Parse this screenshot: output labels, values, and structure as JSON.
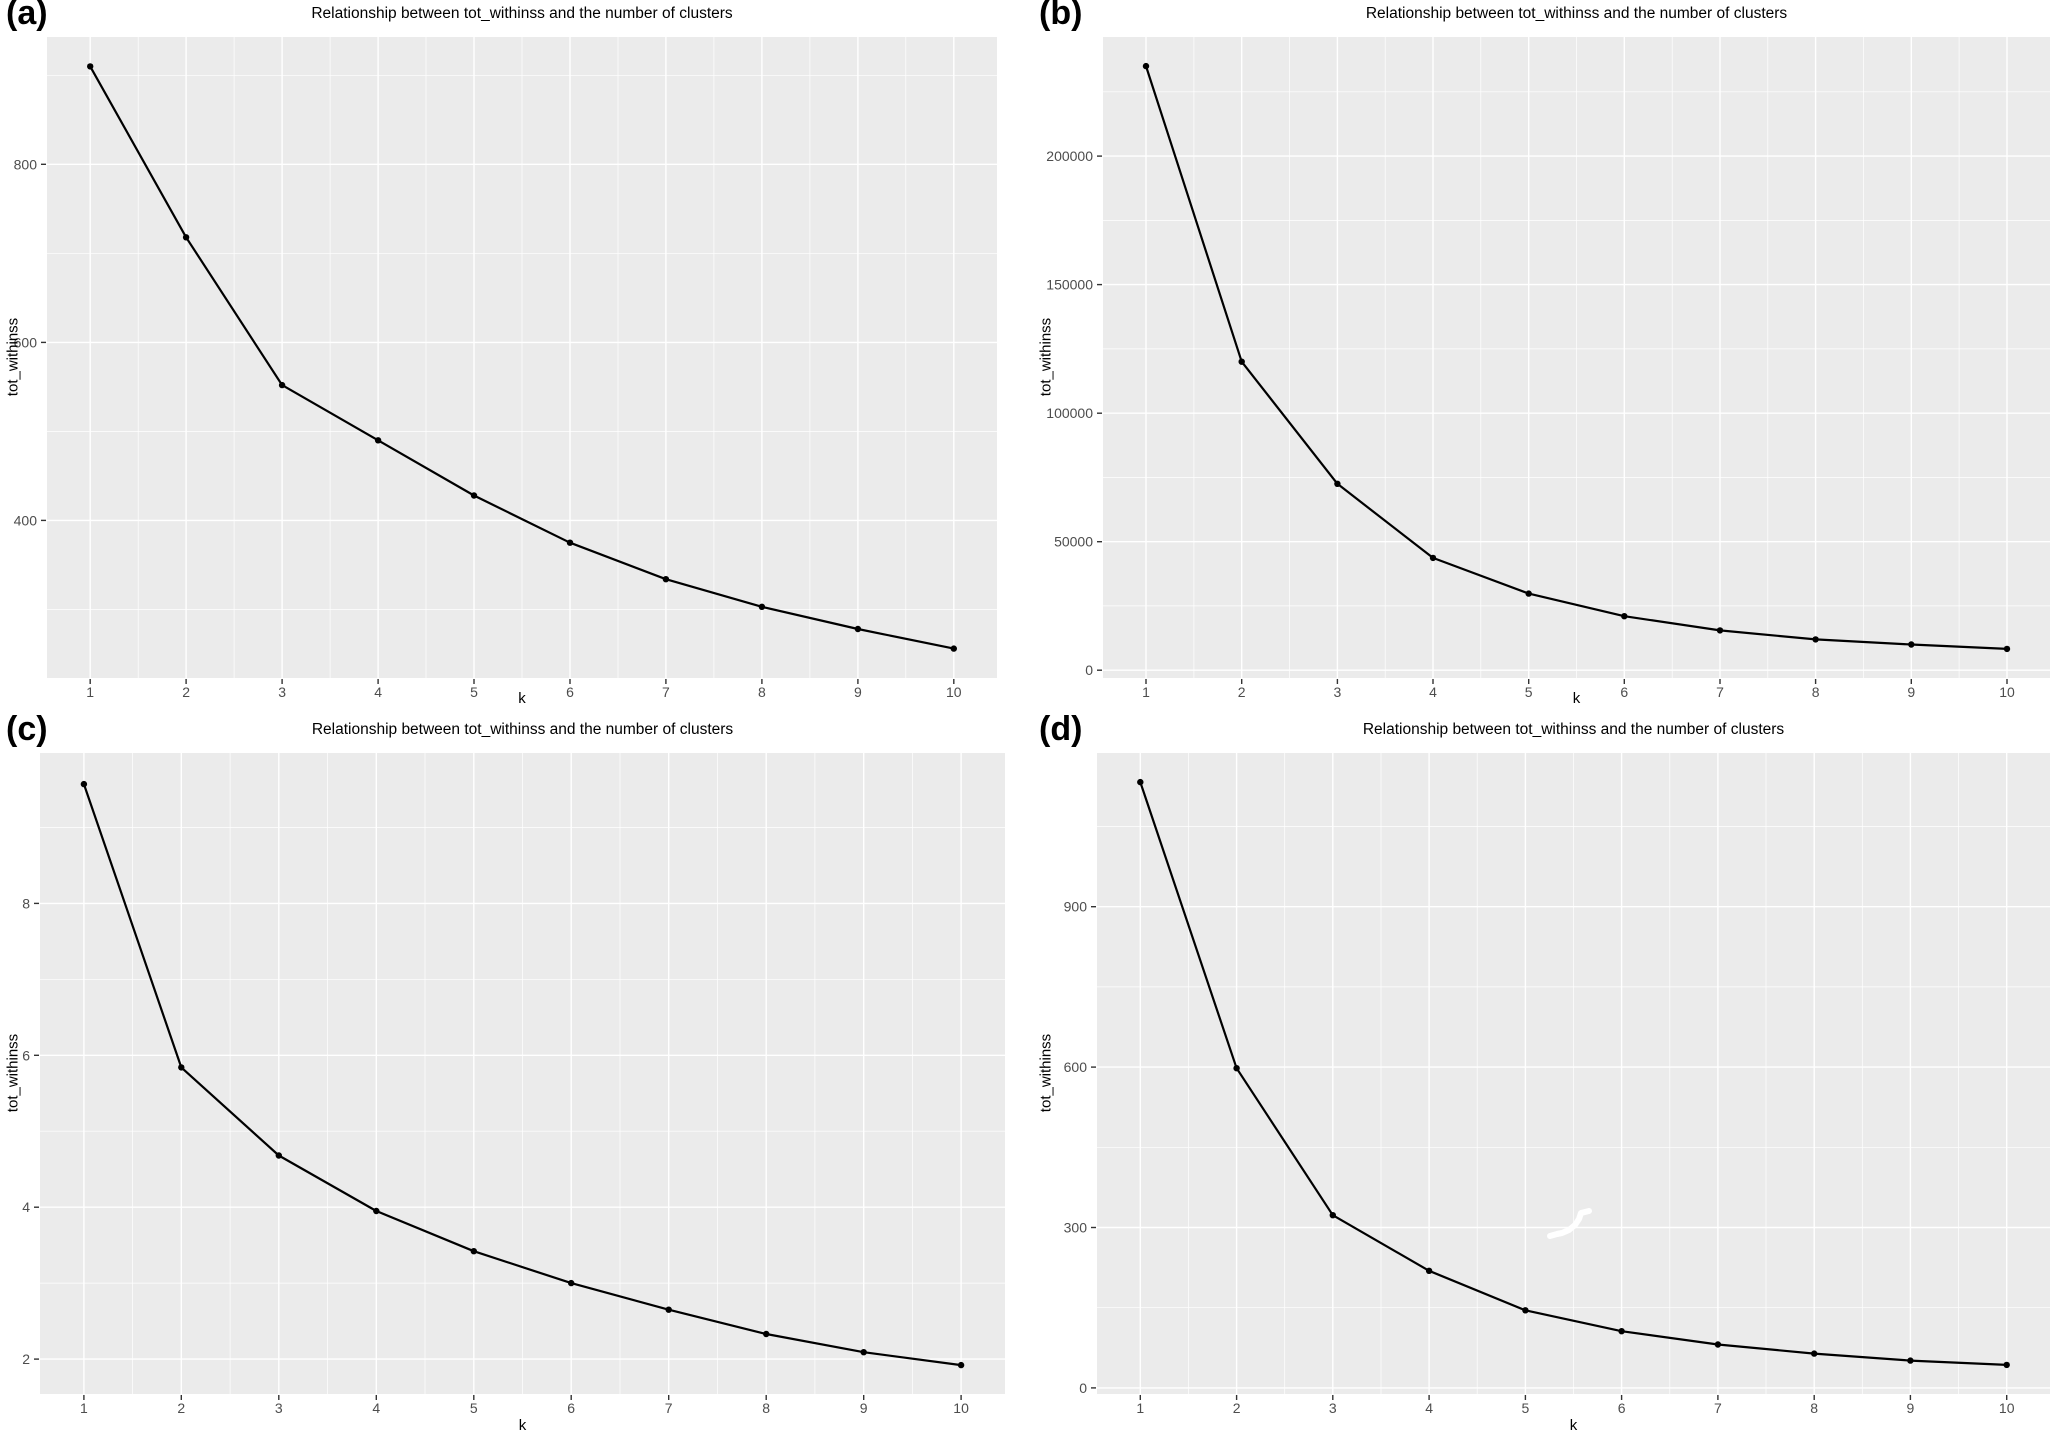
{
  "style": {
    "page_bg": "#ffffff",
    "panel_bg": "#ebebeb",
    "grid_color": "#ffffff",
    "line_color": "#000000",
    "tick_label_color": "#4d4d4d",
    "tick_mark_color": "#333333"
  },
  "chart_data": [
    {
      "panel_label": "(a)",
      "type": "line",
      "title": "Relationship between tot_withinss and the number of clusters",
      "xlabel": "k",
      "ylabel": "tot_withinss",
      "x": [
        1,
        2,
        3,
        4,
        5,
        6,
        7,
        8,
        9,
        10
      ],
      "values": [
        910,
        718,
        552,
        490,
        428,
        375,
        334,
        303,
        278,
        256
      ],
      "xlim": [
        0.55,
        10.45
      ],
      "ylim": [
        223,
        943
      ],
      "xticks": [
        1,
        2,
        3,
        4,
        5,
        6,
        7,
        8,
        9,
        10
      ],
      "xticks_minor": [
        1.5,
        2.5,
        3.5,
        4.5,
        5.5,
        6.5,
        7.5,
        8.5,
        9.5
      ],
      "yticks": [
        400,
        600,
        800
      ],
      "ytick_labels": [
        "400",
        "600",
        "800"
      ],
      "yticks_minor": [
        300,
        500,
        700,
        900
      ],
      "grid": true,
      "legend": "none"
    },
    {
      "panel_label": "(b)",
      "type": "line",
      "title": "Relationship between tot_withinss and the number of clusters",
      "xlabel": "k",
      "ylabel": "tot_withinss",
      "x": [
        1,
        2,
        3,
        4,
        5,
        6,
        7,
        8,
        9,
        10
      ],
      "values": [
        235000,
        120000,
        72500,
        43700,
        29800,
        21000,
        15500,
        12000,
        10000,
        8300
      ],
      "xlim": [
        0.55,
        10.45
      ],
      "ylim": [
        -3035,
        246335
      ],
      "xticks": [
        1,
        2,
        3,
        4,
        5,
        6,
        7,
        8,
        9,
        10
      ],
      "xticks_minor": [
        1.5,
        2.5,
        3.5,
        4.5,
        5.5,
        6.5,
        7.5,
        8.5,
        9.5
      ],
      "yticks": [
        0,
        50000,
        100000,
        150000,
        200000
      ],
      "ytick_labels": [
        "0",
        "50000",
        "100000",
        "150000",
        "200000"
      ],
      "yticks_minor": [
        25000,
        75000,
        125000,
        175000,
        225000
      ],
      "grid": true,
      "legend": "none"
    },
    {
      "panel_label": "(c)",
      "type": "line",
      "title": "Relationship between tot_withinss and the number of clusters",
      "xlabel": "k",
      "ylabel": "tot_withinss",
      "x": [
        1,
        2,
        3,
        4,
        5,
        6,
        7,
        8,
        9,
        10
      ],
      "values": [
        9.57,
        5.84,
        4.68,
        3.95,
        3.42,
        3.0,
        2.65,
        2.33,
        2.09,
        1.92
      ],
      "xlim": [
        0.55,
        10.45
      ],
      "ylim": [
        1.54,
        9.98
      ],
      "xticks": [
        1,
        2,
        3,
        4,
        5,
        6,
        7,
        8,
        9,
        10
      ],
      "xticks_minor": [
        1.5,
        2.5,
        3.5,
        4.5,
        5.5,
        6.5,
        7.5,
        8.5,
        9.5
      ],
      "yticks": [
        2,
        4,
        6,
        8
      ],
      "ytick_labels": [
        "2",
        "4",
        "6",
        "8"
      ],
      "yticks_minor": [
        3,
        5,
        7,
        9
      ],
      "grid": true,
      "legend": "none"
    },
    {
      "panel_label": "(d)",
      "type": "line",
      "title": "Relationship between tot_withinss and the number of clusters",
      "xlabel": "k",
      "ylabel": "tot_withinss",
      "x": [
        1,
        2,
        3,
        4,
        5,
        6,
        7,
        8,
        9,
        10
      ],
      "values": [
        1133,
        598,
        323,
        219,
        145,
        106,
        81,
        64,
        51,
        43
      ],
      "xlim": [
        0.55,
        10.45
      ],
      "ylim": [
        -11.5,
        1187.5
      ],
      "xticks": [
        1,
        2,
        3,
        4,
        5,
        6,
        7,
        8,
        9,
        10
      ],
      "xticks_minor": [
        1.5,
        2.5,
        3.5,
        4.5,
        5.5,
        6.5,
        7.5,
        8.5,
        9.5
      ],
      "yticks": [
        0,
        300,
        600,
        900
      ],
      "ytick_labels": [
        "0",
        "300",
        "600",
        "900"
      ],
      "yticks_minor": [
        150,
        450,
        750,
        1050
      ],
      "grid": true,
      "legend": "none",
      "artifact": {
        "type": "white-squiggle",
        "points": [
          [
            517,
            520
          ],
          [
            524,
            518
          ],
          [
            529,
            517
          ],
          [
            536,
            514
          ],
          [
            542,
            509
          ],
          [
            546,
            503
          ],
          [
            548,
            497
          ],
          [
            552,
            496
          ],
          [
            556,
            495
          ]
        ]
      }
    }
  ]
}
